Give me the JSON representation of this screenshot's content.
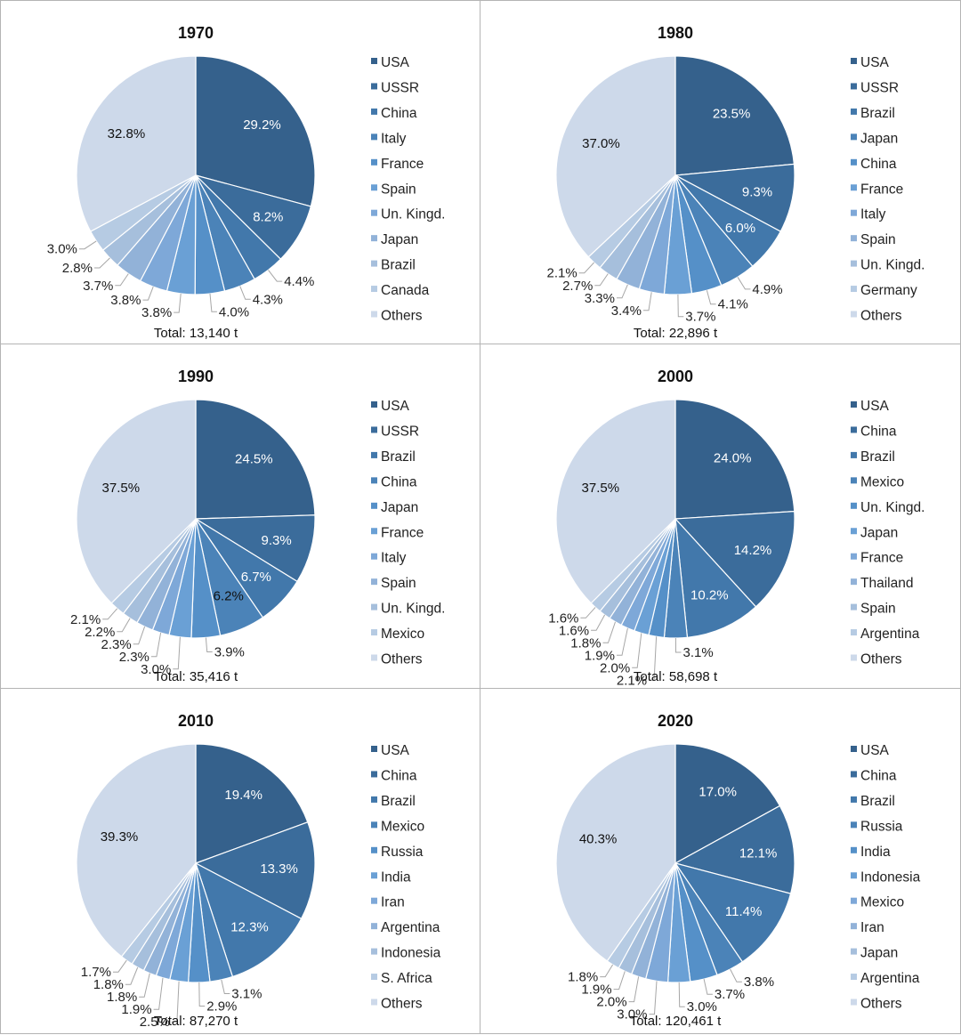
{
  "colors": {
    "slices": [
      "#35618c",
      "#3b6c9b",
      "#4278ab",
      "#4b83b8",
      "#5590c8",
      "#6aa0d5",
      "#7ea8d8",
      "#92b2d8",
      "#a6bfdc",
      "#b6cbe3"
    ],
    "others": "#cdd9ea",
    "label_light": "#ffffff",
    "label_dark": "#111111"
  },
  "chart_data": [
    {
      "type": "pie",
      "title": "1970",
      "total_label": "Total: 13,140 t",
      "labels": [
        "USA",
        "USSR",
        "China",
        "Italy",
        "France",
        "Spain",
        "Un. Kingd.",
        "Japan",
        "Brazil",
        "Canada",
        "Others"
      ],
      "values": [
        29.2,
        8.2,
        4.4,
        4.3,
        4.0,
        3.8,
        3.8,
        3.7,
        2.8,
        3.0,
        32.8
      ],
      "value_labels": [
        "29.2%",
        "8.2%",
        "4.4%",
        "4.3%",
        "4.0%",
        "3.8%",
        "3.8%",
        "3.7%",
        "2.8%",
        "3.0%",
        "32.8%"
      ],
      "legend_position": "right"
    },
    {
      "type": "pie",
      "title": "1980",
      "total_label": "Total: 22,896 t",
      "labels": [
        "USA",
        "USSR",
        "Brazil",
        "Japan",
        "China",
        "France",
        "Italy",
        "Spain",
        "Un. Kingd.",
        "Germany",
        "Others"
      ],
      "values": [
        23.5,
        9.3,
        6.0,
        4.9,
        4.1,
        3.7,
        3.4,
        3.3,
        2.7,
        2.1,
        37.0
      ],
      "value_labels": [
        "23.5%",
        "9.3%",
        "6.0%",
        "4.9%",
        "4.1%",
        "3.7%",
        "3.4%",
        "3.3%",
        "2.7%",
        "2.1%",
        "37.0%"
      ],
      "legend_position": "right"
    },
    {
      "type": "pie",
      "title": "1990",
      "total_label": "Total: 35,416 t",
      "labels": [
        "USA",
        "USSR",
        "Brazil",
        "China",
        "Japan",
        "France",
        "Italy",
        "Spain",
        "Un. Kingd.",
        "Mexico",
        "Others"
      ],
      "values": [
        24.5,
        9.3,
        6.7,
        6.2,
        3.9,
        3.0,
        2.3,
        2.3,
        2.2,
        2.1,
        37.5
      ],
      "value_labels": [
        "24.5%",
        "9.3%",
        "6.7%",
        "6.2%",
        "3.9%",
        "3.0%",
        "2.3%",
        "2.3%",
        "2.2%",
        "2.1%",
        "37.5%"
      ],
      "legend_position": "right"
    },
    {
      "type": "pie",
      "title": "2000",
      "total_label": "Total: 58,698 t",
      "labels": [
        "USA",
        "China",
        "Brazil",
        "Mexico",
        "Un. Kingd.",
        "Japan",
        "France",
        "Thailand",
        "Spain",
        "Argentina",
        "Others"
      ],
      "values": [
        24.0,
        14.2,
        10.2,
        3.1,
        2.1,
        2.0,
        1.9,
        1.8,
        1.6,
        1.6,
        37.5
      ],
      "value_labels": [
        "24.0%",
        "14.2%",
        "10.2%",
        "3.1%",
        "2.1%",
        "2.0%",
        "1.9%",
        "1.8%",
        "1.6%",
        "1.6%",
        "37.5%"
      ],
      "legend_position": "right"
    },
    {
      "type": "pie",
      "title": "2010",
      "total_label": "Total: 87,270 t",
      "labels": [
        "USA",
        "China",
        "Brazil",
        "Mexico",
        "Russia",
        "India",
        "Iran",
        "Argentina",
        "Indonesia",
        "S. Africa",
        "Others"
      ],
      "values": [
        19.4,
        13.3,
        12.3,
        3.1,
        2.9,
        2.5,
        1.9,
        1.8,
        1.8,
        1.7,
        39.3
      ],
      "value_labels": [
        "19.4%",
        "13.3%",
        "12.3%",
        "3.1%",
        "2.9%",
        "2.5%",
        "1.9%",
        "1.8%",
        "1.8%",
        "1.7%",
        "39.3%"
      ],
      "legend_position": "right"
    },
    {
      "type": "pie",
      "title": "2020",
      "total_label": "Total: 120,461 t",
      "labels": [
        "USA",
        "China",
        "Brazil",
        "Russia",
        "India",
        "Indonesia",
        "Mexico",
        "Iran",
        "Japan",
        "Argentina",
        "Others"
      ],
      "values": [
        17.0,
        12.1,
        11.4,
        3.8,
        3.7,
        3.0,
        3.0,
        2.0,
        1.9,
        1.8,
        40.3
      ],
      "value_labels": [
        "17.0%",
        "12.1%",
        "11.4%",
        "3.8%",
        "3.7%",
        "3.0%",
        "3.0%",
        "2.0%",
        "1.9%",
        "1.8%",
        "40.3%"
      ],
      "legend_position": "right"
    }
  ]
}
